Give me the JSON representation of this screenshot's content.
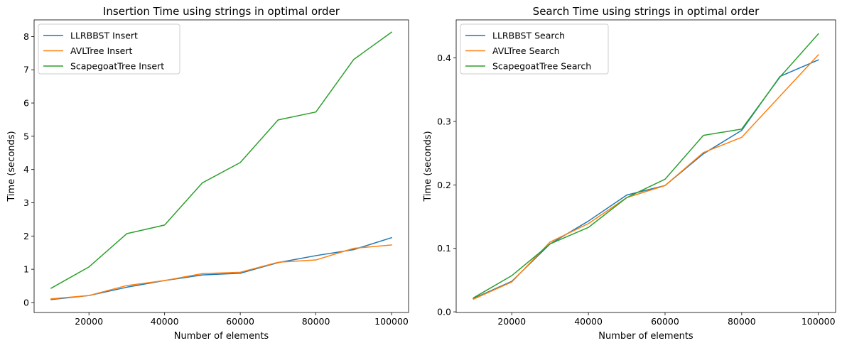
{
  "chart_data": [
    {
      "type": "line",
      "title": "Insertion Time using strings in optimal order",
      "xlabel": "Number of elements",
      "ylabel": "Time (seconds)",
      "xlim": [
        5500,
        104500
      ],
      "ylim": [
        -0.3,
        8.5
      ],
      "xticks": [
        20000,
        40000,
        60000,
        80000,
        100000
      ],
      "yticks": [
        0,
        1,
        2,
        3,
        4,
        5,
        6,
        7,
        8
      ],
      "grid": false,
      "legend": "top-left",
      "x": [
        10000,
        20000,
        30000,
        40000,
        50000,
        60000,
        70000,
        80000,
        90000,
        100000
      ],
      "series": [
        {
          "name": "LLRBBST Insert",
          "color": "#1f77b4",
          "values": [
            0.09,
            0.21,
            0.46,
            0.66,
            0.83,
            0.88,
            1.2,
            1.41,
            1.59,
            1.95
          ]
        },
        {
          "name": "AVLTree Insert",
          "color": "#ff7f0e",
          "values": [
            0.11,
            0.21,
            0.51,
            0.66,
            0.87,
            0.91,
            1.21,
            1.28,
            1.63,
            1.73
          ]
        },
        {
          "name": "ScapegoatTree Insert",
          "color": "#2ca02c",
          "values": [
            0.43,
            1.07,
            2.07,
            2.33,
            3.6,
            4.21,
            5.49,
            5.73,
            7.31,
            8.13
          ]
        }
      ]
    },
    {
      "type": "line",
      "title": "Search Time using strings in optimal order",
      "xlabel": "Number of elements",
      "ylabel": "Time (seconds)",
      "xlim": [
        5500,
        104500
      ],
      "ylim": [
        -0.001,
        0.46
      ],
      "xticks": [
        20000,
        40000,
        60000,
        80000,
        100000
      ],
      "yticks": [
        0.0,
        0.1,
        0.2,
        0.3,
        0.4
      ],
      "grid": false,
      "legend": "top-left",
      "x": [
        10000,
        20000,
        30000,
        40000,
        50000,
        60000,
        70000,
        80000,
        90000,
        100000
      ],
      "series": [
        {
          "name": "LLRBBST Search",
          "color": "#1f77b4",
          "values": [
            0.021,
            0.048,
            0.107,
            0.143,
            0.184,
            0.199,
            0.249,
            0.286,
            0.371,
            0.397
          ]
        },
        {
          "name": "AVLTree Search",
          "color": "#ff7f0e",
          "values": [
            0.02,
            0.047,
            0.11,
            0.139,
            0.18,
            0.199,
            0.251,
            0.275,
            0.34,
            0.405
          ]
        },
        {
          "name": "ScapegoatTree Search",
          "color": "#2ca02c",
          "values": [
            0.022,
            0.057,
            0.107,
            0.133,
            0.18,
            0.209,
            0.278,
            0.288,
            0.37,
            0.438
          ]
        }
      ]
    }
  ]
}
